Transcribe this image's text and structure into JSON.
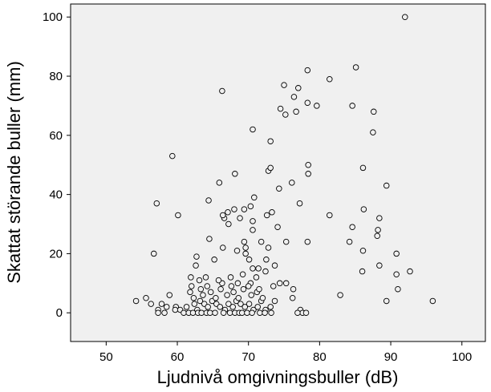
{
  "chart_data": {
    "type": "scatter",
    "title": "",
    "xlabel": "Ljudnivå omgivningsbuller (dB)",
    "ylabel": "Skattat störande buller (mm)",
    "xlim": [
      45,
      103.3
    ],
    "ylim": [
      -9.7,
      104.4
    ],
    "xticks": [
      50,
      60,
      70,
      80,
      90,
      100
    ],
    "yticks": [
      0,
      20,
      40,
      60,
      80,
      100
    ],
    "grid": false,
    "colors": {
      "plot_background": "#f0f0f0",
      "marker_stroke": "#000000",
      "marker_fill": "#f0f0f0"
    },
    "series": [
      {
        "marker": "open-circle",
        "points": [
          [
            92.0,
            100
          ],
          [
            85.1,
            83
          ],
          [
            78.3,
            82
          ],
          [
            66.3,
            75
          ],
          [
            81.4,
            79
          ],
          [
            77.0,
            76
          ],
          [
            75.0,
            77
          ],
          [
            76.4,
            73
          ],
          [
            74.5,
            69
          ],
          [
            78.3,
            71
          ],
          [
            79.6,
            70
          ],
          [
            84.6,
            70
          ],
          [
            87.6,
            68
          ],
          [
            75.2,
            67
          ],
          [
            76.7,
            68
          ],
          [
            87.5,
            61
          ],
          [
            70.6,
            62
          ],
          [
            73.1,
            58
          ],
          [
            59.3,
            53
          ],
          [
            78.4,
            50
          ],
          [
            68.1,
            47
          ],
          [
            72.8,
            48
          ],
          [
            73.1,
            49
          ],
          [
            86.1,
            49
          ],
          [
            78.4,
            47
          ],
          [
            89.4,
            43
          ],
          [
            65.9,
            44
          ],
          [
            74.3,
            42
          ],
          [
            76.1,
            44
          ],
          [
            70.8,
            39
          ],
          [
            66.6,
            32
          ],
          [
            70.3,
            36
          ],
          [
            64.4,
            38
          ],
          [
            69.4,
            35
          ],
          [
            57.1,
            37
          ],
          [
            60.1,
            33
          ],
          [
            68.0,
            35
          ],
          [
            66.4,
            33
          ],
          [
            67.1,
            34
          ],
          [
            68.8,
            32
          ],
          [
            70.6,
            31
          ],
          [
            72.6,
            33
          ],
          [
            73.3,
            34
          ],
          [
            74.1,
            29
          ],
          [
            77.2,
            37
          ],
          [
            81.4,
            33
          ],
          [
            84.6,
            29
          ],
          [
            86.2,
            35
          ],
          [
            88.4,
            32
          ],
          [
            88.2,
            28
          ],
          [
            88.1,
            26
          ],
          [
            56.7,
            20
          ],
          [
            64.5,
            25
          ],
          [
            69.4,
            24
          ],
          [
            70.6,
            28
          ],
          [
            67.2,
            30
          ],
          [
            69.6,
            22
          ],
          [
            71.8,
            24
          ],
          [
            72.8,
            22
          ],
          [
            75.3,
            24
          ],
          [
            78.3,
            24
          ],
          [
            84.2,
            24
          ],
          [
            86.1,
            21
          ],
          [
            88.4,
            16
          ],
          [
            90.8,
            20
          ],
          [
            92.7,
            14
          ],
          [
            62.6,
            16
          ],
          [
            65.2,
            18
          ],
          [
            62.7,
            19
          ],
          [
            66.4,
            22
          ],
          [
            68.4,
            21
          ],
          [
            69.6,
            20
          ],
          [
            70.1,
            18
          ],
          [
            70.6,
            15
          ],
          [
            71.4,
            15
          ],
          [
            72.5,
            18
          ],
          [
            73.7,
            16
          ],
          [
            61.9,
            12
          ],
          [
            63.1,
            11
          ],
          [
            64.0,
            12
          ],
          [
            66.3,
            10
          ],
          [
            67.5,
            12
          ],
          [
            69.2,
            13
          ],
          [
            70.3,
            10
          ],
          [
            71.1,
            12
          ],
          [
            72.4,
            14
          ],
          [
            74.4,
            10
          ],
          [
            75.3,
            10
          ],
          [
            76.3,
            8
          ],
          [
            86.0,
            14
          ],
          [
            90.8,
            13
          ],
          [
            54.2,
            4
          ],
          [
            55.6,
            5
          ],
          [
            56.3,
            3
          ],
          [
            57.3,
            1
          ],
          [
            57.8,
            3
          ],
          [
            58.5,
            2
          ],
          [
            59.8,
            2
          ],
          [
            59.7,
            1
          ],
          [
            60.4,
            1
          ],
          [
            61.3,
            2
          ],
          [
            62.4,
            3
          ],
          [
            62.8,
            1
          ],
          [
            63.2,
            4
          ],
          [
            63.8,
            3
          ],
          [
            64.3,
            2
          ],
          [
            64.9,
            4
          ],
          [
            65.5,
            3
          ],
          [
            66.0,
            2
          ],
          [
            66.7,
            1
          ],
          [
            67.2,
            3
          ],
          [
            67.8,
            2
          ],
          [
            68.3,
            4
          ],
          [
            68.9,
            3
          ],
          [
            69.5,
            2
          ],
          [
            70.1,
            3
          ],
          [
            70.7,
            1
          ],
          [
            71.3,
            2
          ],
          [
            71.8,
            4
          ],
          [
            72.4,
            1
          ],
          [
            73.1,
            2
          ],
          [
            73.7,
            4
          ],
          [
            76.2,
            5
          ],
          [
            77.3,
            1
          ],
          [
            77.6,
            0
          ],
          [
            82.9,
            6
          ],
          [
            89.4,
            4
          ],
          [
            91.0,
            8
          ],
          [
            95.9,
            4
          ],
          [
            58.9,
            6
          ],
          [
            61.8,
            7
          ],
          [
            62.3,
            5
          ],
          [
            63.6,
            6
          ],
          [
            64.7,
            7
          ],
          [
            65.4,
            5
          ],
          [
            66.1,
            8
          ],
          [
            67.0,
            6
          ],
          [
            67.9,
            7
          ],
          [
            68.6,
            5
          ],
          [
            69.3,
            8
          ],
          [
            70.4,
            6
          ],
          [
            71.2,
            7
          ],
          [
            72.0,
            5
          ],
          [
            73.5,
            9
          ],
          [
            57.3,
            0
          ],
          [
            58.2,
            0
          ],
          [
            60.9,
            0
          ],
          [
            61.6,
            0
          ],
          [
            62.2,
            0
          ],
          [
            62.9,
            0
          ],
          [
            63.4,
            0
          ],
          [
            64.1,
            0
          ],
          [
            64.6,
            0
          ],
          [
            65.3,
            0
          ],
          [
            66.5,
            0
          ],
          [
            67.4,
            0
          ],
          [
            68.1,
            0
          ],
          [
            68.7,
            0
          ],
          [
            69.1,
            0
          ],
          [
            69.8,
            0
          ],
          [
            70.5,
            0
          ],
          [
            71.6,
            0
          ],
          [
            72.3,
            0
          ],
          [
            73.2,
            0
          ],
          [
            76.9,
            0
          ],
          [
            78.1,
            0
          ],
          [
            62.0,
            9
          ],
          [
            63.3,
            8
          ],
          [
            64.2,
            9
          ],
          [
            65.8,
            11
          ],
          [
            67.6,
            9
          ],
          [
            68.5,
            10
          ],
          [
            70.0,
            9
          ],
          [
            71.5,
            8
          ]
        ]
      }
    ]
  }
}
